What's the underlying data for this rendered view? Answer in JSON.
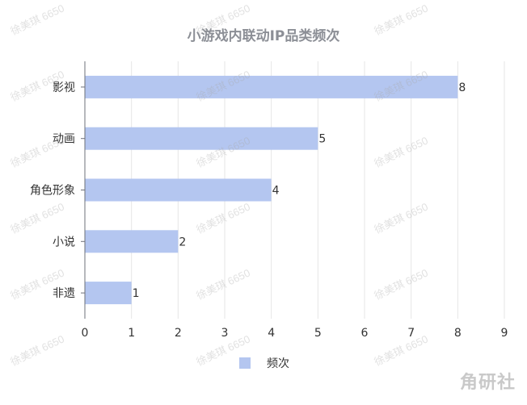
{
  "chart_data": {
    "type": "bar",
    "orientation": "horizontal",
    "title": "小游戏内联动IP品类频次",
    "categories": [
      "影视",
      "动画",
      "角色形象",
      "小说",
      "非遗"
    ],
    "series": [
      {
        "name": "频次",
        "values": [
          8,
          5,
          4,
          2,
          1
        ],
        "color": "#b4c6f0"
      }
    ],
    "xlim": [
      0,
      9
    ],
    "xticks": [
      0,
      1,
      2,
      3,
      4,
      5,
      6,
      7,
      8,
      9
    ],
    "grid": true,
    "legend": "bottom",
    "data_labels": true
  },
  "watermark_text": "徐美琪 6650",
  "logo_text": "角研社"
}
